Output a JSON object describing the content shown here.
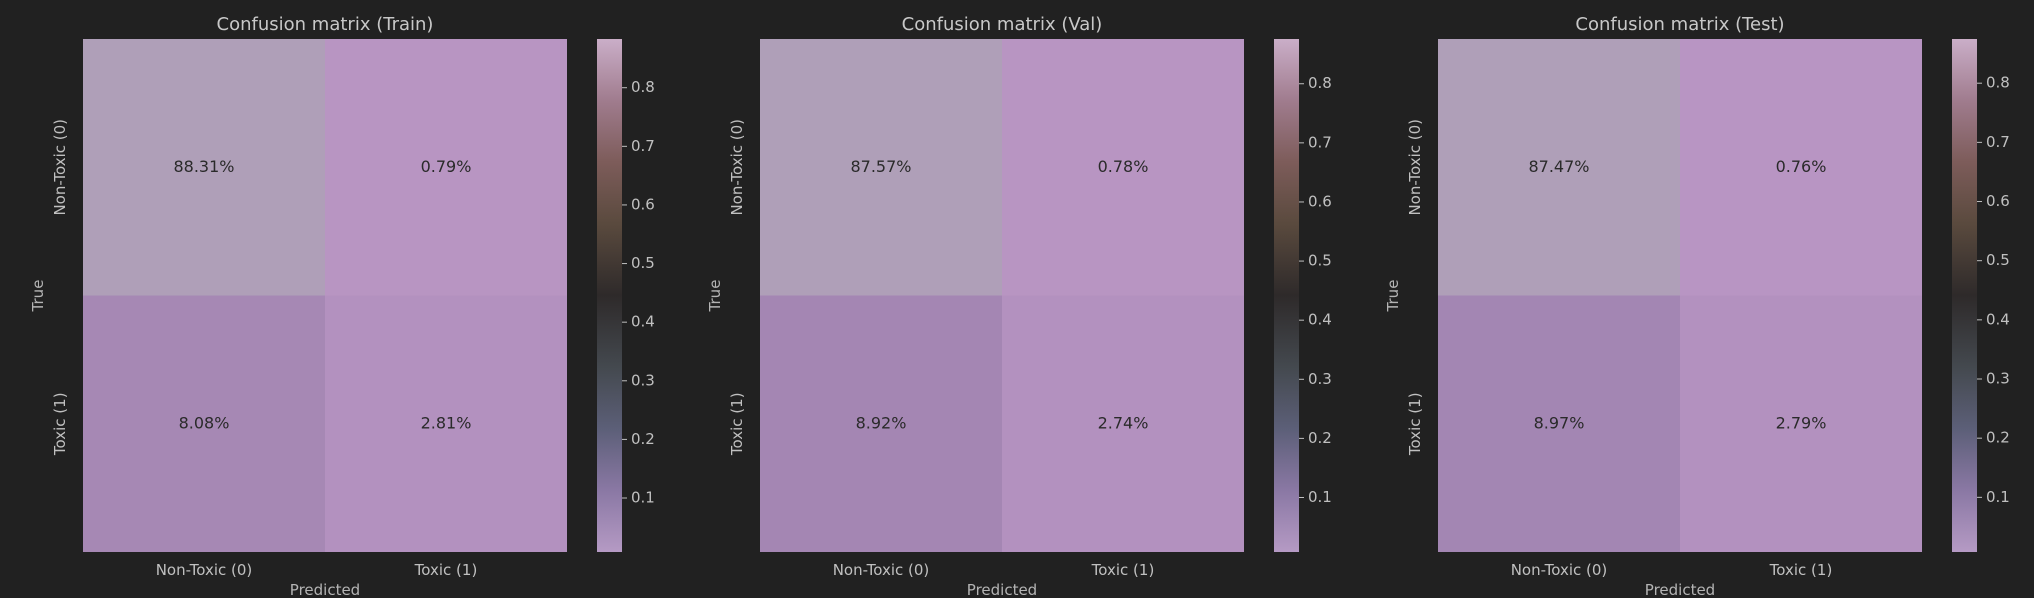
{
  "chart_data": [
    {
      "type": "heatmap",
      "title": "Confusion matrix (Train)",
      "xlabel": "Predicted",
      "ylabel": "True",
      "x_categories": [
        "Non-Toxic (0)",
        "Toxic (1)"
      ],
      "y_categories": [
        "Non-Toxic (0)",
        "Toxic (1)"
      ],
      "values": [
        [
          0.8831,
          0.0079
        ],
        [
          0.0808,
          0.0281
        ]
      ],
      "labels": [
        [
          "88.31%",
          "0.79%"
        ],
        [
          "8.08%",
          "2.81%"
        ]
      ],
      "colorbar": {
        "ticks": [
          0.1,
          0.2,
          0.3,
          0.4,
          0.5,
          0.6,
          0.7,
          0.8
        ],
        "range": [
          0.0079,
          0.8831
        ]
      }
    },
    {
      "type": "heatmap",
      "title": "Confusion matrix (Val)",
      "xlabel": "Predicted",
      "ylabel": "True",
      "x_categories": [
        "Non-Toxic (0)",
        "Toxic (1)"
      ],
      "y_categories": [
        "Non-Toxic (0)",
        "Toxic (1)"
      ],
      "values": [
        [
          0.8757,
          0.0078
        ],
        [
          0.0892,
          0.0274
        ]
      ],
      "labels": [
        [
          "87.57%",
          "0.78%"
        ],
        [
          "8.92%",
          "2.74%"
        ]
      ],
      "colorbar": {
        "ticks": [
          0.1,
          0.2,
          0.3,
          0.4,
          0.5,
          0.6,
          0.7,
          0.8
        ],
        "range": [
          0.0078,
          0.8757
        ]
      }
    },
    {
      "type": "heatmap",
      "title": "Confusion matrix (Test)",
      "xlabel": "Predicted",
      "ylabel": "True",
      "x_categories": [
        "Non-Toxic (0)",
        "Toxic (1)"
      ],
      "y_categories": [
        "Non-Toxic (0)",
        "Toxic (1)"
      ],
      "values": [
        [
          0.8747,
          0.0076
        ],
        [
          0.0897,
          0.0279
        ]
      ],
      "labels": [
        [
          "87.47%",
          "0.76%"
        ],
        [
          "8.97%",
          "2.79%"
        ]
      ],
      "colorbar": {
        "ticks": [
          0.1,
          0.2,
          0.3,
          0.4,
          0.5,
          0.6,
          0.7,
          0.8
        ],
        "range": [
          0.0076,
          0.8747
        ]
      }
    }
  ]
}
